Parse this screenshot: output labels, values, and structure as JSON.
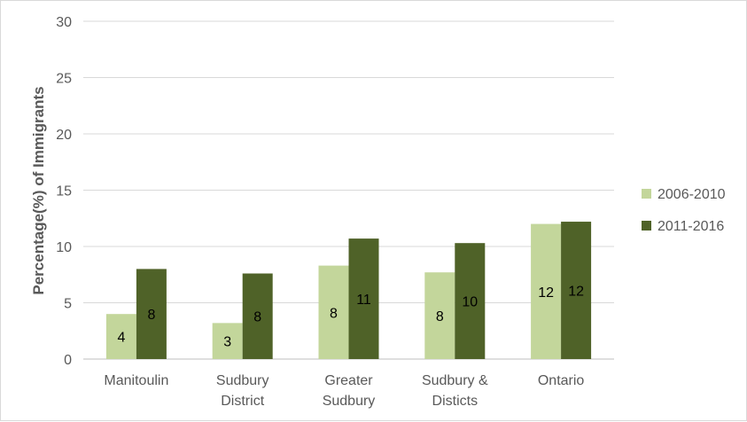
{
  "chart_data": {
    "type": "bar",
    "title": "",
    "xlabel": "",
    "ylabel": "Percentage(%) of Immigrants",
    "ylim": [
      0,
      30
    ],
    "yticks": [
      0,
      5,
      10,
      15,
      20,
      25,
      30
    ],
    "grid": true,
    "legend_position": "right",
    "categories": [
      [
        "Manitoulin"
      ],
      [
        "Sudbury",
        "District"
      ],
      [
        "Greater",
        "Sudbury"
      ],
      [
        "Sudbury &",
        "Disticts"
      ],
      [
        "Ontario"
      ]
    ],
    "series": [
      {
        "name": "2006-2010",
        "color": "#c3d69b",
        "values": [
          4.0,
          3.2,
          8.3,
          7.7,
          12.0
        ],
        "labels": [
          "4",
          "3",
          "8",
          "8",
          "12"
        ]
      },
      {
        "name": "2011-2016",
        "color": "#4f6228",
        "values": [
          8.0,
          7.6,
          10.7,
          10.3,
          12.2
        ],
        "labels": [
          "8",
          "8",
          "11",
          "10",
          "12"
        ]
      }
    ]
  }
}
